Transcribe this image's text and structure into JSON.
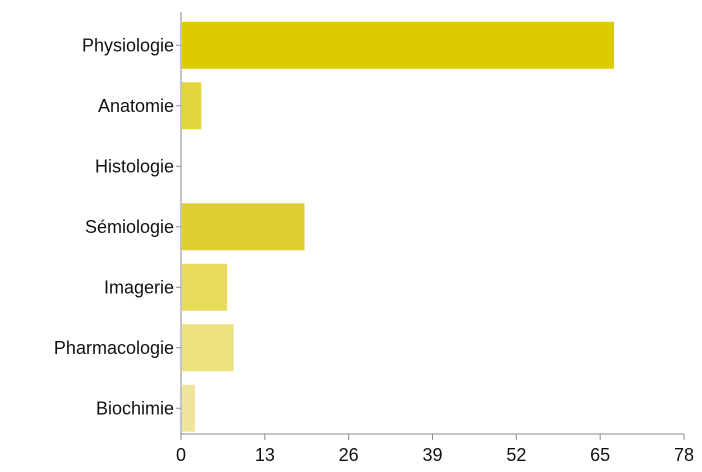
{
  "chart_data": {
    "type": "bar",
    "orientation": "horizontal",
    "categories": [
      "Physiologie",
      "Anatomie",
      "Histologie",
      "Sémiologie",
      "Imagerie",
      "Pharmacologie",
      "Biochimie"
    ],
    "values": [
      67,
      3,
      0,
      19,
      7,
      8,
      2
    ],
    "colors": [
      "#dccb00",
      "#e2d43d",
      "#e8da55",
      "#e0ce33",
      "#e8da5a",
      "#ede17e",
      "#efe59a"
    ],
    "xticks": [
      "0",
      "13",
      "26",
      "39",
      "52",
      "65",
      "78"
    ],
    "xlim": [
      0,
      78
    ],
    "title": "",
    "xlabel": "",
    "ylabel": "",
    "grid": false,
    "legend": "none"
  }
}
